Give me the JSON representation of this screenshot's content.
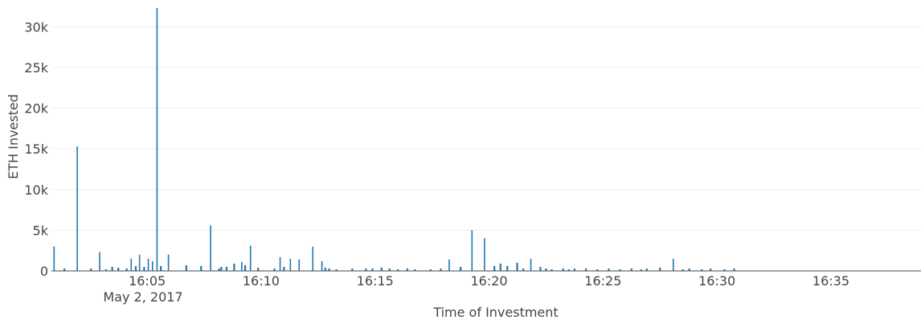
{
  "chart_data": {
    "type": "bar",
    "title": "",
    "xlabel": "Time of Investment",
    "ylabel": "ETH Invested",
    "date_label": "May 2, 2017",
    "ylim": [
      0,
      32500
    ],
    "xlim": [
      "16:00:48",
      "16:38:57"
    ],
    "grid": true,
    "bar_color": "#1f77b4",
    "y_ticks": [
      {
        "value": 0,
        "label": "0"
      },
      {
        "value": 5000,
        "label": "5k"
      },
      {
        "value": 10000,
        "label": "10k"
      },
      {
        "value": 15000,
        "label": "15k"
      },
      {
        "value": 20000,
        "label": "20k"
      },
      {
        "value": 25000,
        "label": "25k"
      },
      {
        "value": 30000,
        "label": "30k"
      }
    ],
    "x_ticks": [
      {
        "value": "16:05",
        "label": "16:05"
      },
      {
        "value": "16:10",
        "label": "16:10"
      },
      {
        "value": "16:15",
        "label": "16:15"
      },
      {
        "value": "16:20",
        "label": "16:20"
      },
      {
        "value": "16:25",
        "label": "16:25"
      },
      {
        "value": "16:30",
        "label": "16:30"
      },
      {
        "value": "16:35",
        "label": "16:35"
      }
    ],
    "x": [
      "16:00:55",
      "16:01:22",
      "16:01:56",
      "16:02:32",
      "16:02:55",
      "16:03:12",
      "16:03:28",
      "16:03:44",
      "16:04:06",
      "16:04:18",
      "16:04:30",
      "16:04:40",
      "16:04:52",
      "16:05:03",
      "16:05:14",
      "16:05:26",
      "16:05:36",
      "16:05:56",
      "16:06:43",
      "16:07:22",
      "16:07:47",
      "16:08:09",
      "16:08:15",
      "16:08:29",
      "16:08:49",
      "16:09:09",
      "16:09:18",
      "16:09:32",
      "16:09:52",
      "16:10:35",
      "16:10:50",
      "16:11:00",
      "16:11:17",
      "16:11:40",
      "16:12:16",
      "16:12:40",
      "16:12:49",
      "16:12:59",
      "16:13:18",
      "16:14:00",
      "16:14:36",
      "16:14:53",
      "16:15:17",
      "16:15:38",
      "16:16:00",
      "16:16:25",
      "16:16:45",
      "16:17:26",
      "16:17:53",
      "16:18:15",
      "16:18:45",
      "16:19:15",
      "16:19:48",
      "16:20:14",
      "16:20:30",
      "16:20:48",
      "16:21:14",
      "16:21:30",
      "16:21:50",
      "16:22:15",
      "16:22:30",
      "16:22:45",
      "16:23:15",
      "16:23:30",
      "16:23:45",
      "16:24:15",
      "16:24:45",
      "16:25:15",
      "16:25:45",
      "16:26:15",
      "16:26:40",
      "16:26:55",
      "16:27:30",
      "16:28:05",
      "16:28:30",
      "16:28:47",
      "16:29:20",
      "16:29:43",
      "16:30:20",
      "16:30:45"
    ],
    "values": [
      3000,
      300,
      15300,
      300,
      2300,
      200,
      500,
      400,
      300,
      1500,
      600,
      2000,
      500,
      1500,
      1200,
      32300,
      600,
      2000,
      700,
      600,
      5600,
      300,
      500,
      500,
      900,
      1100,
      700,
      3100,
      400,
      300,
      1700,
      500,
      1500,
      1400,
      3000,
      1200,
      400,
      300,
      200,
      300,
      300,
      300,
      400,
      300,
      200,
      300,
      200,
      200,
      300,
      1400,
      500,
      5000,
      4000,
      600,
      900,
      600,
      1000,
      300,
      1500,
      500,
      300,
      200,
      300,
      200,
      300,
      300,
      200,
      300,
      200,
      300,
      200,
      300,
      400,
      1500,
      200,
      300,
      200,
      300,
      200,
      300
    ]
  }
}
